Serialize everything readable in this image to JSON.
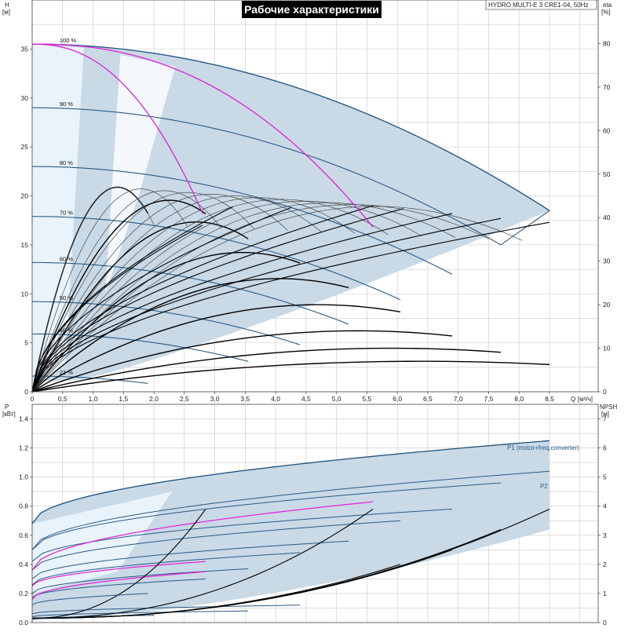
{
  "title": "Рабочие характеристики",
  "model": "HYDRO MULTI-E 3 CRE1-04, 50Hz",
  "colors": {
    "envelope": "#c9d9e6",
    "envelope_light": "#e9f3fb",
    "envelope_edge": "#1d4f7a",
    "speed_curve": "#2a5a85",
    "magenta": "#e020d8",
    "black": "#000000",
    "grid": "#c8c8c8"
  },
  "top_axes": {
    "y_left_label": "H",
    "y_left_unit": "[м]",
    "y_right_label": "eta",
    "y_right_unit": "[%]",
    "x_label": "Q",
    "x_unit": "[м³/ч]",
    "x_ticks": [
      "0",
      "0,5",
      "1,0",
      "1,5",
      "2,0",
      "2,5",
      "3,0",
      "3,5",
      "4,0",
      "4,5",
      "5,0",
      "5,5",
      "6,0",
      "6,5",
      "7,0",
      "7,5",
      "8,0",
      "8,5"
    ],
    "y_left_ticks": [
      "0",
      "5",
      "10",
      "15",
      "20",
      "25",
      "30",
      "35"
    ],
    "y_right_ticks": [
      "0",
      "10",
      "20",
      "30",
      "40",
      "50",
      "60",
      "70",
      "80"
    ]
  },
  "bottom_axes": {
    "y_left_label": "P",
    "y_left_unit": "[кВт]",
    "y_right_label": "NPSH",
    "y_right_unit": "[м]",
    "y_left_ticks": [
      "0.0",
      "0.2",
      "0.4",
      "0.6",
      "0.8",
      "1.0",
      "1.2",
      "1.4"
    ],
    "y_right_ticks": [
      "0",
      "1",
      "2",
      "3",
      "4",
      "5",
      "6",
      "7"
    ]
  },
  "legend": {
    "p1": "P1 (motor+freq.converter)",
    "p2": "P2"
  },
  "chart_data": [
    {
      "type": "line",
      "name": "H-Q",
      "xlabel": "Q [м³/ч]",
      "ylabel": "H [м]",
      "y2label": "eta [%]",
      "xlim": [
        0,
        9.3
      ],
      "ylim": [
        0,
        40
      ],
      "y2lim": [
        0,
        90
      ],
      "series": [
        {
          "name": "100 %",
          "x": [
            0,
            8.5
          ],
          "y": [
            35.5,
            18.5
          ]
        },
        {
          "name": "90 %",
          "x": [
            0,
            7.7
          ],
          "y": [
            29,
            15
          ]
        },
        {
          "name": "80 %",
          "x": [
            0,
            6.9
          ],
          "y": [
            23,
            12
          ]
        },
        {
          "name": "70 %",
          "x": [
            0,
            6.05
          ],
          "y": [
            17.9,
            9.4
          ]
        },
        {
          "name": "60 %",
          "x": [
            0,
            5.2
          ],
          "y": [
            13.2,
            6.9
          ]
        },
        {
          "name": "50 %",
          "x": [
            0,
            4.4
          ],
          "y": [
            9.2,
            4.8
          ]
        },
        {
          "name": "40 %",
          "x": [
            0,
            3.55
          ],
          "y": [
            5.9,
            3.1
          ]
        },
        {
          "name": "21 %",
          "x": [
            0,
            1.9
          ],
          "y": [
            1.6,
            0.85
          ]
        }
      ],
      "eta_curves": [
        {
          "x_end": 1.9,
          "x_peak": 1.4,
          "eta_peak": 47
        },
        {
          "x_end": 2.85,
          "x_peak": 2.25,
          "eta_peak": 44
        },
        {
          "x_end": 3.55,
          "x_peak": 2.7,
          "eta_peak": 39
        },
        {
          "x_end": 4.4,
          "x_peak": 3.45,
          "eta_peak": 32
        },
        {
          "x_end": 5.2,
          "x_peak": 4.05,
          "eta_peak": 26
        },
        {
          "x_end": 6.05,
          "x_peak": 4.7,
          "eta_peak": 20
        },
        {
          "x_end": 6.9,
          "x_peak": 5.35,
          "eta_peak": 14
        },
        {
          "x_end": 7.7,
          "x_peak": 5.9,
          "eta_peak": 10
        },
        {
          "x_end": 8.5,
          "x_peak": 6.4,
          "eta_peak": 7
        }
      ],
      "magenta_curves": [
        {
          "x": [
            0,
            1.5,
            2.8
          ],
          "y": [
            35.5,
            33.5,
            18.2
          ]
        },
        {
          "x": [
            0,
            3.2,
            5.6
          ],
          "y": [
            35.5,
            31.5,
            16.8
          ]
        }
      ],
      "eta_scale_percent": [
        0,
        80
      ]
    },
    {
      "type": "line",
      "name": "P-Q",
      "xlabel": "Q [м³/ч]",
      "ylabel": "P [кВт]",
      "y2label": "NPSH [м]",
      "xlim": [
        0,
        9.3
      ],
      "ylim": [
        0,
        1.5
      ],
      "y2lim": [
        0,
        7.5
      ],
      "series": [
        {
          "name": "P1 (motor+freq.converter)",
          "x": [
            0,
            8.5
          ],
          "y": [
            0.68,
            1.25
          ]
        },
        {
          "name": "P2",
          "x": [
            0,
            8.5
          ],
          "y": [
            0.5,
            1.04
          ]
        }
      ],
      "npsh_curves": [
        {
          "x_end": 2.85,
          "npsh_end": 3.9
        },
        {
          "x_end": 5.6,
          "npsh_end": 3.9
        },
        {
          "x_end": 6.05,
          "npsh_end": 2.0
        },
        {
          "x_end": 6.9,
          "npsh_end": 2.5
        },
        {
          "x_end": 7.7,
          "npsh_end": 3.2
        },
        {
          "x_end": 8.5,
          "npsh_end": 3.9
        }
      ]
    }
  ]
}
